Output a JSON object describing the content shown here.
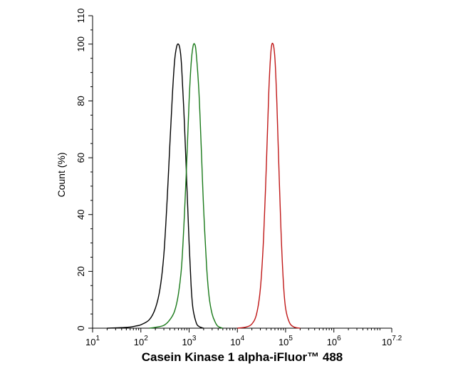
{
  "chart_data": {
    "type": "line",
    "xlabel": "Casein Kinase 1 alpha-iFluor™ 488",
    "ylabel": "Count  (%)",
    "x_scale": "log10",
    "xlim": [
      10,
      15848931.92
    ],
    "ylim": [
      0,
      110
    ],
    "grid": false,
    "legend": "none",
    "x_ticks": [
      {
        "base": "10",
        "exp": "1",
        "value": 10
      },
      {
        "base": "10",
        "exp": "2",
        "value": 100
      },
      {
        "base": "10",
        "exp": "3",
        "value": 1000
      },
      {
        "base": "10",
        "exp": "4",
        "value": 10000
      },
      {
        "base": "10",
        "exp": "5",
        "value": 100000
      },
      {
        "base": "10",
        "exp": "6",
        "value": 1000000
      },
      {
        "base": "10",
        "exp": "7.2",
        "value": 15848931.92
      }
    ],
    "y_ticks": [
      "0",
      "20",
      "40",
      "60",
      "80",
      "100",
      "110"
    ],
    "series": [
      {
        "color": "#000000",
        "x": [
          20,
          40,
          60,
          80,
          100,
          150,
          200,
          250,
          300,
          350,
          400,
          450,
          500,
          550,
          600,
          650,
          700,
          800,
          900,
          1000,
          1100,
          1200,
          1400,
          1600,
          2000
        ],
        "y": [
          0,
          0.2,
          0.4,
          0.8,
          1.2,
          3,
          7,
          14,
          26,
          45,
          65,
          82,
          94,
          99,
          100,
          98,
          92,
          72,
          50,
          30,
          15,
          7,
          2,
          0.6,
          0
        ]
      },
      {
        "color": "#1a7a1a",
        "x": [
          150,
          200,
          300,
          400,
          500,
          600,
          700,
          800,
          900,
          1000,
          1100,
          1200,
          1300,
          1400,
          1600,
          1800,
          2000,
          2300,
          2600,
          3000,
          3500,
          4000,
          5000
        ],
        "y": [
          0,
          0.3,
          1,
          3,
          6,
          12,
          22,
          40,
          60,
          80,
          93,
          99,
          100,
          97,
          83,
          62,
          42,
          22,
          11,
          5,
          2,
          0.6,
          0
        ]
      },
      {
        "color": "#c01818",
        "x": [
          10000,
          15000,
          20000,
          25000,
          30000,
          35000,
          40000,
          45000,
          50000,
          55000,
          60000,
          65000,
          70000,
          80000,
          90000,
          100000,
          120000,
          150000,
          200000
        ],
        "y": [
          0,
          0.4,
          1.5,
          5,
          14,
          32,
          58,
          84,
          98,
          100,
          95,
          82,
          65,
          35,
          16,
          7,
          2,
          0.4,
          0
        ]
      }
    ]
  }
}
